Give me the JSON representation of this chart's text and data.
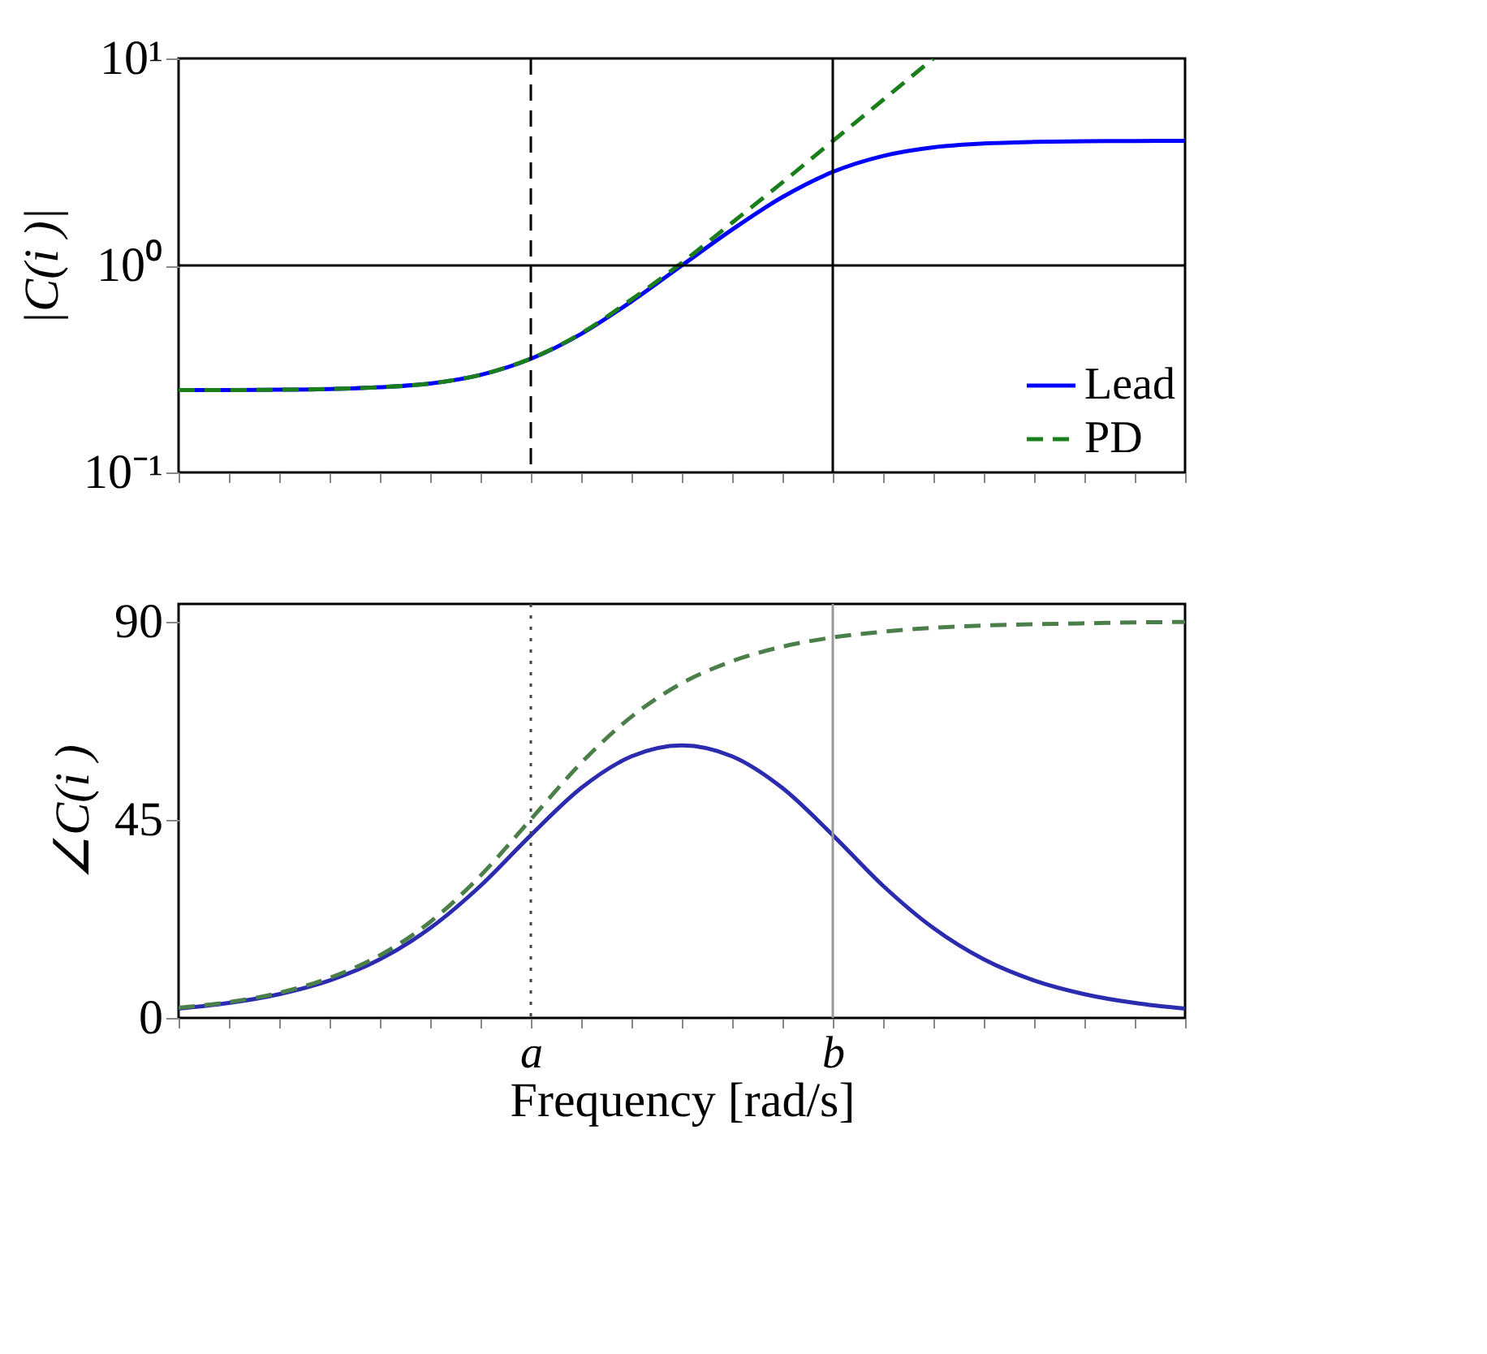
{
  "chart_data": [
    {
      "type": "line",
      "ylabel": "|C(i )|",
      "categories": [
        null,
        null,
        null,
        null,
        null,
        null,
        null,
        "a",
        null,
        null,
        null,
        null,
        null,
        "b",
        null,
        null,
        null,
        null,
        null,
        null,
        null
      ],
      "series": [
        {
          "name": "Lead",
          "color": "#0000ff",
          "values": [
            0.25,
            0.25,
            0.251,
            0.253,
            0.258,
            0.269,
            0.296,
            0.354,
            0.467,
            0.67,
            1,
            1.49,
            2.14,
            2.83,
            3.38,
            3.72,
            3.88,
            3.95,
            3.98,
            3.99,
            4.0
          ]
        },
        {
          "name": "PD",
          "color": "#1a7f1a",
          "line_style": "dashed",
          "values": [
            0.25,
            0.25,
            0.251,
            0.253,
            0.258,
            0.269,
            0.296,
            0.355,
            0.47,
            0.685,
            1.03,
            1.61,
            2.52,
            3.99,
            6.31,
            10.0,
            null,
            null,
            null,
            null,
            null
          ]
        }
      ],
      "ylim": [
        0.1,
        10
      ],
      "yticks": [
        {
          "value": 0.1,
          "label": "10⁻¹"
        },
        {
          "value": 1,
          "label": "10⁰"
        },
        {
          "value": 10,
          "label": "10¹"
        }
      ],
      "log": "y",
      "legend": "bottom right",
      "tick_labels": "y",
      "ref_lines": [
        {
          "axis": "y",
          "value": 1,
          "color": "#000000"
        },
        {
          "axis": "x",
          "value": "a",
          "color": "#000000",
          "line_style": "dashed"
        },
        {
          "axis": "x",
          "value": "b",
          "color": "#000000"
        }
      ]
    },
    {
      "type": "line",
      "xlabel": "Frequency [rad/s]",
      "ylabel": "∠C(i )",
      "categories": [
        null,
        null,
        null,
        null,
        null,
        null,
        null,
        "a",
        null,
        null,
        null,
        null,
        null,
        "b",
        null,
        null,
        null,
        null,
        null,
        null,
        null
      ],
      "series": [
        {
          "color": "#2b2bb0",
          "values": [
            2.1,
            3.4,
            5.4,
            8.5,
            13.3,
            20.4,
            30.0,
            41.5,
            52.2,
            59.4,
            61.9,
            59.4,
            52.2,
            41.5,
            30.0,
            20.4,
            13.3,
            8.5,
            5.4,
            3.4,
            2.1
          ]
        },
        {
          "color": "#4a7f4a",
          "line_style": "dashed",
          "values": [
            2.3,
            3.6,
            5.7,
            9.1,
            14.2,
            21.8,
            32.3,
            45.1,
            57.9,
            68.4,
            76.0,
            81.0,
            84.3,
            86.4,
            87.7,
            88.6,
            89.1,
            89.4,
            89.6,
            89.8,
            89.9
          ]
        }
      ],
      "ylim": [
        0,
        94
      ],
      "yticks": [
        0,
        45,
        90
      ],
      "ref_lines": [
        {
          "axis": "x",
          "value": "a",
          "color": "#444444",
          "line_style": "dotted"
        },
        {
          "axis": "x",
          "value": "b",
          "color": "#999999"
        }
      ]
    }
  ]
}
